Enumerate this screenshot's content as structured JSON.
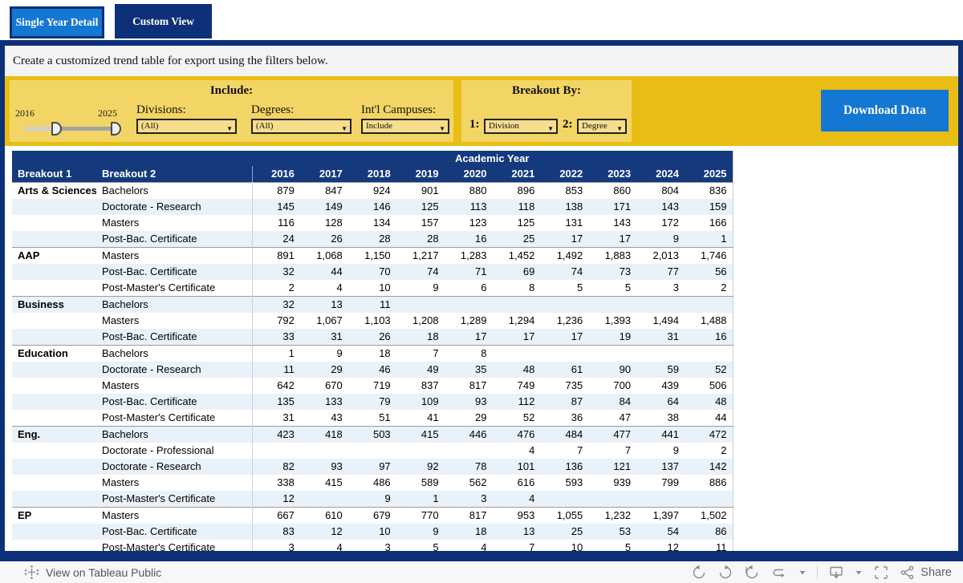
{
  "tabs": [
    {
      "label": "Single Year Detail",
      "active": false
    },
    {
      "label": "Custom View",
      "active": true
    }
  ],
  "instruction": "Create a customized trend table for export using the filters below.",
  "filters": {
    "include": {
      "title": "Include:",
      "slider": {
        "min_label": "2016",
        "max_label": "2025"
      },
      "divisions": {
        "label": "Divisions:",
        "value": "(All)"
      },
      "degrees": {
        "label": "Degrees:",
        "value": "(All)"
      },
      "intl_campuses": {
        "label": "Int'l Campuses:",
        "value": "Include"
      }
    },
    "breakout": {
      "title": "Breakout By:",
      "first": {
        "label": "1:",
        "value": "Division"
      },
      "second": {
        "label": "2:",
        "value": "Degree"
      }
    },
    "download_label": "Download Data"
  },
  "table": {
    "span_header": "Academic Year",
    "col1": "Breakout 1",
    "col2": "Breakout 2",
    "years": [
      "2016",
      "2017",
      "2018",
      "2019",
      "2020",
      "2021",
      "2022",
      "2023",
      "2024",
      "2025"
    ],
    "groups": [
      {
        "name": "Arts & Sciences",
        "rows": [
          {
            "degree": "Bachelors",
            "values": [
              "879",
              "847",
              "924",
              "901",
              "880",
              "896",
              "853",
              "860",
              "804",
              "836"
            ]
          },
          {
            "degree": "Doctorate - Research",
            "values": [
              "145",
              "149",
              "146",
              "125",
              "113",
              "118",
              "138",
              "171",
              "143",
              "159"
            ]
          },
          {
            "degree": "Masters",
            "values": [
              "116",
              "128",
              "134",
              "157",
              "123",
              "125",
              "131",
              "143",
              "172",
              "166"
            ]
          },
          {
            "degree": "Post-Bac. Certificate",
            "values": [
              "24",
              "26",
              "28",
              "28",
              "16",
              "25",
              "17",
              "17",
              "9",
              "1"
            ]
          }
        ]
      },
      {
        "name": "AAP",
        "rows": [
          {
            "degree": "Masters",
            "values": [
              "891",
              "1,068",
              "1,150",
              "1,217",
              "1,283",
              "1,452",
              "1,492",
              "1,883",
              "2,013",
              "1,746"
            ]
          },
          {
            "degree": "Post-Bac. Certificate",
            "values": [
              "32",
              "44",
              "70",
              "74",
              "71",
              "69",
              "74",
              "73",
              "77",
              "56"
            ]
          },
          {
            "degree": "Post-Master's Certificate",
            "values": [
              "2",
              "4",
              "10",
              "9",
              "6",
              "8",
              "5",
              "5",
              "3",
              "2"
            ]
          }
        ]
      },
      {
        "name": "Business",
        "rows": [
          {
            "degree": "Bachelors",
            "values": [
              "32",
              "13",
              "11",
              "",
              "",
              "",
              "",
              "",
              "",
              ""
            ]
          },
          {
            "degree": "Masters",
            "values": [
              "792",
              "1,067",
              "1,103",
              "1,208",
              "1,289",
              "1,294",
              "1,236",
              "1,393",
              "1,494",
              "1,488"
            ]
          },
          {
            "degree": "Post-Bac. Certificate",
            "values": [
              "33",
              "31",
              "26",
              "18",
              "17",
              "17",
              "17",
              "19",
              "31",
              "16"
            ]
          }
        ]
      },
      {
        "name": "Education",
        "rows": [
          {
            "degree": "Bachelors",
            "values": [
              "1",
              "9",
              "18",
              "7",
              "8",
              "",
              "",
              "",
              "",
              ""
            ]
          },
          {
            "degree": "Doctorate - Research",
            "values": [
              "11",
              "29",
              "46",
              "49",
              "35",
              "48",
              "61",
              "90",
              "59",
              "52"
            ]
          },
          {
            "degree": "Masters",
            "values": [
              "642",
              "670",
              "719",
              "837",
              "817",
              "749",
              "735",
              "700",
              "439",
              "506"
            ]
          },
          {
            "degree": "Post-Bac. Certificate",
            "values": [
              "135",
              "133",
              "79",
              "109",
              "93",
              "112",
              "87",
              "84",
              "64",
              "48"
            ]
          },
          {
            "degree": "Post-Master's Certificate",
            "values": [
              "31",
              "43",
              "51",
              "41",
              "29",
              "52",
              "36",
              "47",
              "38",
              "44"
            ]
          }
        ]
      },
      {
        "name": "Eng.",
        "rows": [
          {
            "degree": "Bachelors",
            "values": [
              "423",
              "418",
              "503",
              "415",
              "446",
              "476",
              "484",
              "477",
              "441",
              "472"
            ]
          },
          {
            "degree": "Doctorate - Professional",
            "values": [
              "",
              "",
              "",
              "",
              "",
              "4",
              "7",
              "7",
              "9",
              "2"
            ]
          },
          {
            "degree": "Doctorate - Research",
            "values": [
              "82",
              "93",
              "97",
              "92",
              "78",
              "101",
              "136",
              "121",
              "137",
              "142"
            ]
          },
          {
            "degree": "Masters",
            "values": [
              "338",
              "415",
              "486",
              "589",
              "562",
              "616",
              "593",
              "939",
              "799",
              "886"
            ]
          },
          {
            "degree": "Post-Master's Certificate",
            "values": [
              "12",
              "",
              "9",
              "1",
              "3",
              "4",
              "",
              "",
              "",
              ""
            ]
          }
        ]
      },
      {
        "name": "EP",
        "rows": [
          {
            "degree": "Masters",
            "values": [
              "667",
              "610",
              "679",
              "770",
              "817",
              "953",
              "1,055",
              "1,232",
              "1,397",
              "1,502"
            ]
          },
          {
            "degree": "Post-Bac. Certificate",
            "values": [
              "83",
              "12",
              "10",
              "9",
              "18",
              "13",
              "25",
              "53",
              "54",
              "86"
            ]
          },
          {
            "degree": "Post-Master's Certificate",
            "values": [
              "3",
              "4",
              "3",
              "5",
              "4",
              "7",
              "10",
              "5",
              "12",
              "11"
            ]
          }
        ]
      }
    ]
  },
  "footer": {
    "view_on_label": "View on Tableau Public",
    "share_label": "Share"
  },
  "colors": {
    "navy": "#0d3178",
    "table_header_navy": "#14397d",
    "accent_blue": "#1477d2",
    "gold": "#e9bd14",
    "panel_yellow": "#f3d566",
    "dropdown_yellow": "#f6de8d",
    "row_alt_blue": "#e9f1f9"
  }
}
